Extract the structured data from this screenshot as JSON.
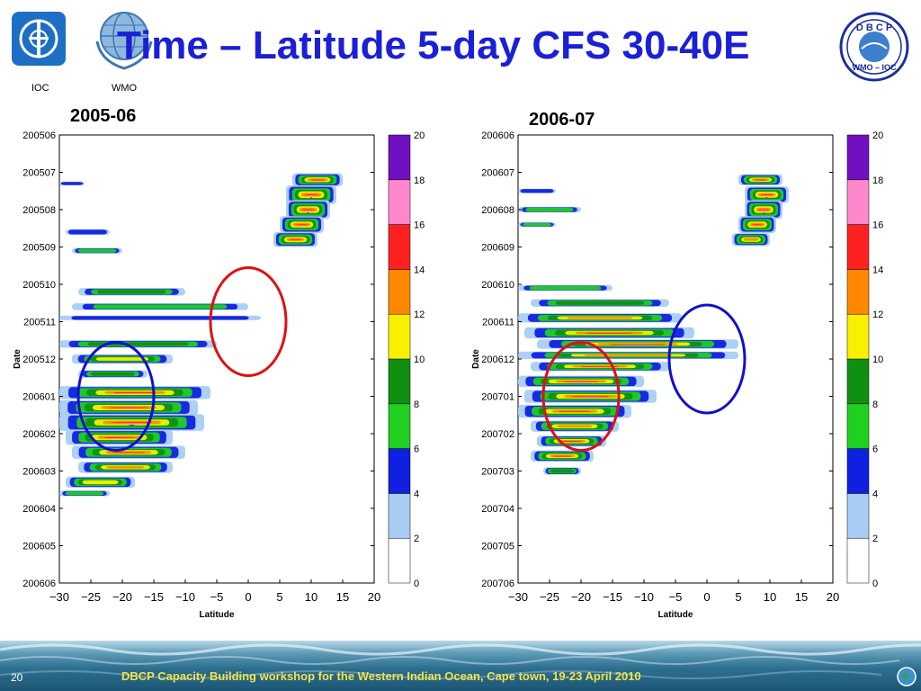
{
  "slide": {
    "title": "Time – Latitude 5-day CFS 30-40E",
    "logos": [
      {
        "label": "IOC",
        "icon": "ioc-logo-icon"
      },
      {
        "label": "WMO",
        "icon": "wmo-logo-icon"
      },
      {
        "label": "",
        "icon": "dbcp-logo-icon",
        "text": "D B C P",
        "subtext": "WMO – IOC"
      }
    ],
    "footer": "DBCP Capacity Building workshop for the Western Indian Ocean, Cape town, 19-23 April 2010",
    "page_number": "20",
    "colors": {
      "title": "#1a20d6",
      "footer_text": "#f2e24a"
    }
  },
  "chart_data": [
    {
      "type": "heatmap",
      "title": "2005-06",
      "xlabel": "Latitude",
      "ylabel": "Date",
      "xlim": [
        -30,
        20
      ],
      "xticks": [
        -30,
        -25,
        -20,
        -15,
        -10,
        -5,
        0,
        5,
        10,
        15,
        20
      ],
      "xtick_labels": [
        "−30",
        "−25",
        "−20",
        "−15",
        "−10",
        "−5",
        "0",
        "5",
        "10",
        "15",
        "20"
      ],
      "yticks": [
        "200506",
        "200507",
        "200508",
        "200509",
        "200510",
        "200511",
        "200512",
        "200601",
        "200602",
        "200603",
        "200604",
        "200605",
        "200606"
      ],
      "colorbar": {
        "levels": [
          0,
          2,
          4,
          6,
          8,
          10,
          12,
          14,
          16,
          18,
          20
        ],
        "colors": [
          "#ffffff",
          "#a8cdf5",
          "#1020e0",
          "#20d020",
          "#109010",
          "#f8f000",
          "#ff8800",
          "#ff2020",
          "#ff88cc",
          "#7010c0"
        ]
      },
      "annotations": [
        {
          "shape": "ellipse",
          "color": "red",
          "lat": 0,
          "date": "200511"
        },
        {
          "shape": "ellipse",
          "color": "blue",
          "lat": -21,
          "date": "200601"
        }
      ]
    },
    {
      "type": "heatmap",
      "title": "2006-07",
      "xlabel": "Latitude",
      "ylabel": "Date",
      "xlim": [
        -30,
        20
      ],
      "xticks": [
        -30,
        -25,
        -20,
        -15,
        -10,
        -5,
        0,
        5,
        10,
        15,
        20
      ],
      "xtick_labels": [
        "−30",
        "−25",
        "−20",
        "−15",
        "−10",
        "−5",
        "0",
        "5",
        "10",
        "15",
        "20"
      ],
      "yticks": [
        "200606",
        "200607",
        "200608",
        "200609",
        "200610",
        "200611",
        "200612",
        "200701",
        "200702",
        "200703",
        "200704",
        "200705",
        "200706"
      ],
      "colorbar": {
        "levels": [
          0,
          2,
          4,
          6,
          8,
          10,
          12,
          14,
          16,
          18,
          20
        ],
        "colors": [
          "#ffffff",
          "#a8cdf5",
          "#1020e0",
          "#20d020",
          "#109010",
          "#f8f000",
          "#ff8800",
          "#ff2020",
          "#ff88cc",
          "#7010c0"
        ]
      },
      "annotations": [
        {
          "shape": "ellipse",
          "color": "red",
          "lat": -20,
          "date": "200701"
        },
        {
          "shape": "ellipse",
          "color": "blue",
          "lat": 0,
          "date": "200612"
        }
      ]
    }
  ]
}
